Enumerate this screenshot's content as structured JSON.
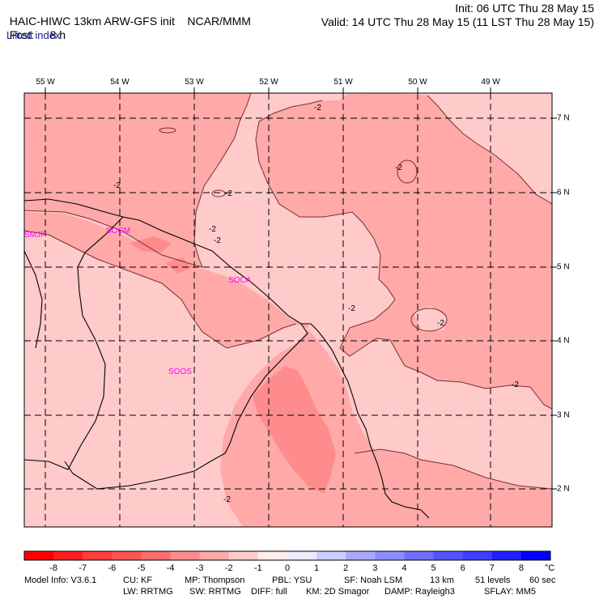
{
  "header": {
    "model": "HAIC-HIWC 13km ARW-GFS init",
    "org": "NCAR/MMM",
    "init": "Init: 06 UTC Thu 28 May 15",
    "fcst_label": "Fcst:",
    "fcst_value": "8 h",
    "valid": "Valid: 14 UTC Thu 28 May 15 (11 LST Thu 28 May 15)",
    "field": "Lifted index"
  },
  "axes": {
    "lon_labels": [
      "55 W",
      "54 W",
      "53 W",
      "52 W",
      "51 W",
      "50 W",
      "49 W"
    ],
    "lat_labels": [
      "7 N",
      "6 N",
      "5 N",
      "4 N",
      "3 N",
      "2 N"
    ]
  },
  "stations": [
    "SMJP",
    "SOCM",
    "SOCA",
    "SOOS"
  ],
  "contour_labels": [
    "-2",
    "-2",
    "-2",
    "-2",
    "-2",
    "-2",
    "-2",
    "-2",
    "-2",
    "-2"
  ],
  "colorbar": {
    "unit": "°C",
    "labels": [
      "-8",
      "-7",
      "-6",
      "-5",
      "-4",
      "-3",
      "-2",
      "-1",
      "0",
      "1",
      "2",
      "3",
      "4",
      "5",
      "6",
      "7",
      "8"
    ],
    "colors": [
      "#ff0000",
      "#ff2020",
      "#ff3f3f",
      "#ff5454",
      "#ff6e6e",
      "#ff8c8c",
      "#ffa8a8",
      "#ffcccc",
      "#ffecec",
      "#ececff",
      "#ccccff",
      "#a8a8ff",
      "#8c8cff",
      "#6e6eff",
      "#5454ff",
      "#3f3fff",
      "#2020ff",
      "#0000ff"
    ]
  },
  "footer": {
    "line1": [
      "Model Info: V3.6.1",
      "CU: KF",
      "MP: Thompson",
      "PBL: YSU",
      "SF: Noah LSM",
      "13 km",
      "51 levels",
      "60 sec"
    ],
    "line2": [
      "LW: RRTMG",
      "SW: RRTMG",
      "DIFF: full",
      "KM: 2D Smagor",
      "DAMP: Rayleigh3",
      "SFLAY: MM5"
    ]
  },
  "colors": {
    "light_fill": "#ffcaca",
    "mid_fill": "#ffa9a9",
    "dark_fill": "#ff8c8c",
    "station_text": "#ff00ff",
    "subtitle": "#1a1aa0"
  }
}
